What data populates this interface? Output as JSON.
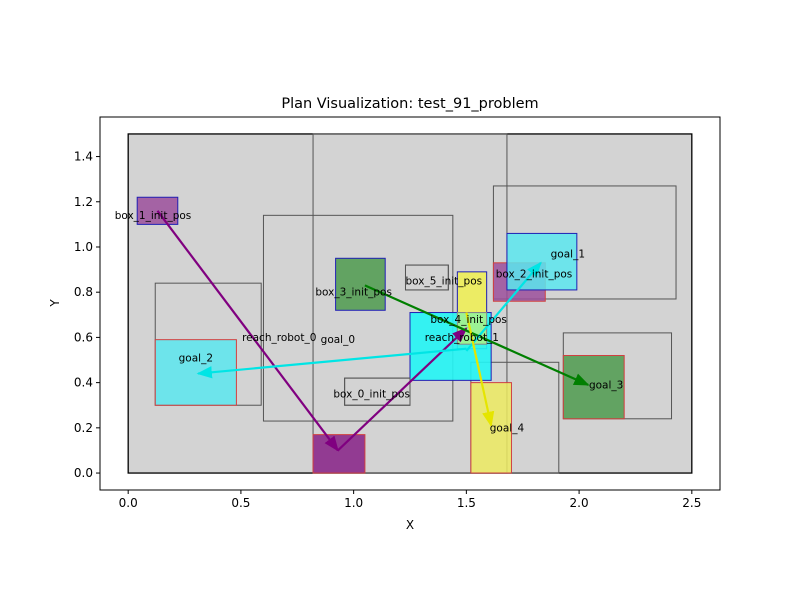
{
  "chart_data": {
    "type": "scatter",
    "title": "Plan Visualization: test_91_problem",
    "xlabel": "X",
    "ylabel": "Y",
    "xlim": [
      -0.125,
      2.625
    ],
    "ylim": [
      -0.075,
      1.575
    ],
    "xticks": [
      0.0,
      0.5,
      1.0,
      1.5,
      2.0,
      2.5
    ],
    "yticks": [
      0.0,
      0.2,
      0.4,
      0.6,
      0.8,
      1.0,
      1.2,
      1.4
    ],
    "grid": false,
    "workspace": {
      "x0": 0.0,
      "y0": 0.0,
      "x1": 2.5,
      "y1": 1.5
    },
    "regions": [
      {
        "x0": 0.82,
        "y0": 0.0,
        "x1": 1.68,
        "y1": 1.5
      },
      {
        "x0": 0.6,
        "y0": 0.23,
        "x1": 1.44,
        "y1": 1.14
      },
      {
        "x0": 1.62,
        "y0": 0.77,
        "x1": 2.43,
        "y1": 1.27
      },
      {
        "x0": 0.12,
        "y0": 0.3,
        "x1": 0.59,
        "y1": 0.84
      },
      {
        "x0": 1.93,
        "y0": 0.24,
        "x1": 2.41,
        "y1": 0.62
      },
      {
        "x0": 1.52,
        "y0": 0.0,
        "x1": 1.91,
        "y1": 0.49
      },
      {
        "x0": 0.96,
        "y0": 0.3,
        "x1": 1.25,
        "y1": 0.42
      },
      {
        "x0": 1.23,
        "y0": 0.81,
        "x1": 1.42,
        "y1": 0.92
      }
    ],
    "objects": [
      {
        "label": "box_1_init_pos",
        "x0": 0.04,
        "y0": 1.1,
        "x1": 0.22,
        "y1": 1.22,
        "fill": "#9b4f9b",
        "edge": "#1f1fb4",
        "alpha": 0.85,
        "label_x": 0.11,
        "label_y": 1.14
      },
      {
        "label": "box_3_init_pos",
        "x0": 0.92,
        "y0": 0.72,
        "x1": 1.14,
        "y1": 0.95,
        "fill": "#4e9a4e",
        "edge": "#1f1fb4",
        "alpha": 0.85,
        "label_x": 1.0,
        "label_y": 0.8
      },
      {
        "label": "box_5_init_pos",
        "x0": 1.46,
        "y0": 0.55,
        "x1": 1.59,
        "y1": 0.89,
        "fill": "#f0f050",
        "edge": "#1f1fb4",
        "alpha": 0.85,
        "label_x": 1.4,
        "label_y": 0.85
      },
      {
        "label": "box_2_init_pos",
        "x0": 1.62,
        "y0": 0.76,
        "x1": 1.85,
        "y1": 0.93,
        "fill": "#9b4f9b",
        "edge": "#d04040",
        "alpha": 0.85,
        "label_x": 1.8,
        "label_y": 0.88
      },
      {
        "label": "goal_1",
        "x0": 1.68,
        "y0": 0.81,
        "x1": 1.99,
        "y1": 1.06,
        "fill": "#5ae6ef",
        "edge": "#1f1fb4",
        "alpha": 0.85,
        "label_x": 1.95,
        "label_y": 0.97
      },
      {
        "label": "reach_robot_1",
        "x0": 1.25,
        "y0": 0.41,
        "x1": 1.61,
        "y1": 0.71,
        "fill": "#22f5f5",
        "edge": "#1f1fb4",
        "alpha": 0.9,
        "label_x": 1.48,
        "label_y": 0.6
      },
      {
        "label": "box_4_init_pos",
        "x0": 1.46,
        "y0": 0.57,
        "x1": 1.59,
        "y1": 0.71,
        "fill": "#f0f050",
        "edge": "#888888",
        "alpha": 0.55,
        "label_x": 1.51,
        "label_y": 0.68
      },
      {
        "label": "goal_2",
        "x0": 0.12,
        "y0": 0.3,
        "x1": 0.48,
        "y1": 0.59,
        "fill": "#5ae6ef",
        "edge": "#d04040",
        "alpha": 0.85,
        "label_x": 0.3,
        "label_y": 0.51
      },
      {
        "label": "goal_3",
        "x0": 1.93,
        "y0": 0.24,
        "x1": 2.2,
        "y1": 0.52,
        "fill": "#4e9a4e",
        "edge": "#d04040",
        "alpha": 0.85,
        "label_x": 2.12,
        "label_y": 0.39
      },
      {
        "label": "goal_4",
        "x0": 1.52,
        "y0": 0.0,
        "x1": 1.7,
        "y1": 0.4,
        "fill": "#ecea60",
        "edge": "#d04040",
        "alpha": 0.85,
        "label_x": 1.68,
        "label_y": 0.2
      },
      {
        "label": "",
        "x0": 0.82,
        "y0": 0.0,
        "x1": 1.05,
        "y1": 0.17,
        "fill": "#8b2a8b",
        "edge": "#d04040",
        "alpha": 0.9
      },
      {
        "label": "box_0_init_pos",
        "x0": 0.96,
        "y0": 0.3,
        "x1": 1.25,
        "y1": 0.42,
        "fill": "none",
        "edge": "#555555",
        "alpha": 1,
        "label_x": 1.08,
        "label_y": 0.35
      },
      {
        "label": "",
        "x0": 1.23,
        "y0": 0.81,
        "x1": 1.42,
        "y1": 0.92,
        "fill": "none",
        "edge": "#555555",
        "alpha": 1
      }
    ],
    "annotations": [
      {
        "text": "reach_robot_0",
        "x": 0.67,
        "y": 0.6
      },
      {
        "text": "goal_0",
        "x": 0.93,
        "y": 0.59
      }
    ],
    "arrows": [
      {
        "x0": 0.13,
        "y0": 1.16,
        "x1": 0.93,
        "y1": 0.1,
        "color": "#800080"
      },
      {
        "x0": 0.93,
        "y0": 0.1,
        "x1": 1.5,
        "y1": 0.64,
        "color": "#800080"
      },
      {
        "x0": 1.05,
        "y0": 0.83,
        "x1": 2.04,
        "y1": 0.39,
        "color": "#007f00"
      },
      {
        "x0": 1.5,
        "y0": 0.54,
        "x1": 1.83,
        "y1": 0.93,
        "color": "#00e5e5"
      },
      {
        "x0": 1.5,
        "y0": 0.55,
        "x1": 0.31,
        "y1": 0.44,
        "color": "#00e5e5"
      },
      {
        "x0": 1.5,
        "y0": 0.71,
        "x1": 1.61,
        "y1": 0.21,
        "color": "#e5e500"
      }
    ]
  }
}
